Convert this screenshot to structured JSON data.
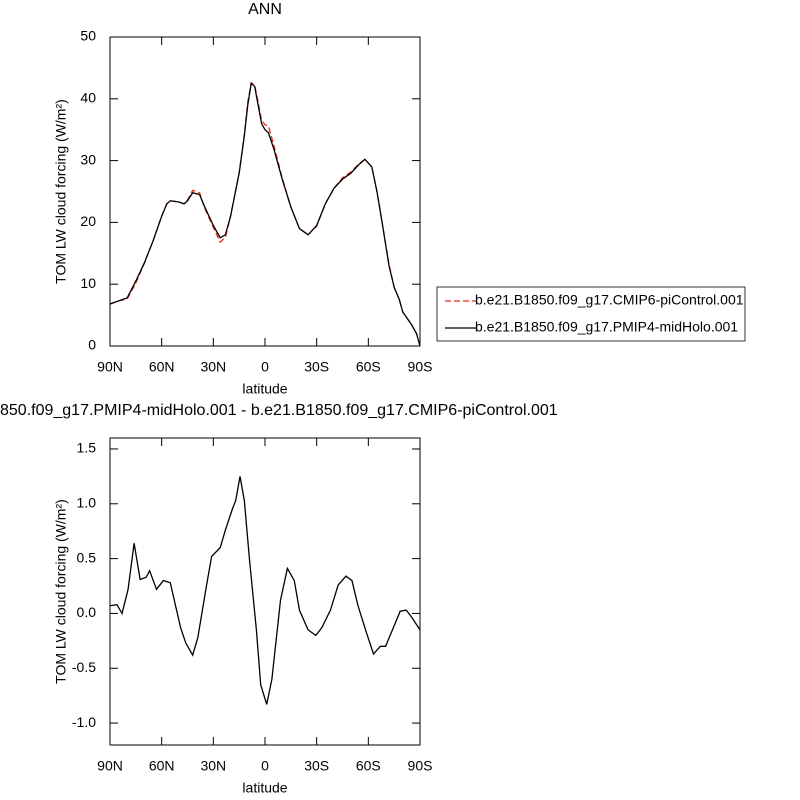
{
  "chart_data": [
    {
      "type": "line",
      "title": "ANN",
      "x_label": "latitude",
      "y_label": "TOM LW cloud forcing (W/m²)",
      "xlim": [
        90,
        -90
      ],
      "ylim": [
        0,
        50
      ],
      "xticks": [
        {
          "value": 90,
          "label": "90N"
        },
        {
          "value": 60,
          "label": "60N"
        },
        {
          "value": 30,
          "label": "30N"
        },
        0,
        {
          "value": -30,
          "label": "30S"
        },
        {
          "value": -60,
          "label": "60S"
        },
        {
          "value": -90,
          "label": "90S"
        }
      ],
      "yticks": [
        0,
        10,
        20,
        30,
        40,
        50
      ],
      "legend": "outside-right",
      "x": [
        90,
        85,
        80,
        75,
        70,
        65,
        60,
        57,
        55,
        50,
        47,
        45,
        42,
        38,
        35,
        30,
        26,
        23,
        20,
        15,
        12,
        10,
        8,
        6,
        4,
        2,
        0,
        -2,
        -5,
        -10,
        -15,
        -20,
        -25,
        -30,
        -35,
        -40,
        -45,
        -50,
        -55,
        -58,
        -62,
        -65,
        -68,
        -72,
        -75,
        -78,
        -80,
        -85,
        -88,
        -90
      ],
      "series": [
        {
          "name": "b.e21.B1850.f09_g17.CMIP6-piControl.001",
          "color": "#e8281e",
          "dash": true,
          "values": [
            6.8,
            7.3,
            7.6,
            10.2,
            13.4,
            17,
            21,
            23,
            23.5,
            23.3,
            23,
            23.6,
            25.2,
            24.8,
            22.3,
            19.2,
            16.8,
            17.6,
            21,
            28,
            34.2,
            39.5,
            42.6,
            42.2,
            39.5,
            36.5,
            35.8,
            35.6,
            32.6,
            27.2,
            22.5,
            19,
            18,
            19.4,
            23,
            25.5,
            27.2,
            28.2,
            29.6,
            30.2,
            29,
            25,
            20,
            13.2,
            9.5,
            7.5,
            5.5,
            3.5,
            2,
            0
          ]
        },
        {
          "name": "b.e21.B1850.f09_g17.PMIP4-midHolo.001",
          "color": "#000000",
          "dash": false,
          "values": [
            6.8,
            7.3,
            7.8,
            10.5,
            13.5,
            17,
            21,
            23,
            23.5,
            23.3,
            23,
            23.5,
            24.8,
            24.5,
            22.5,
            19.5,
            17.5,
            18,
            21,
            28,
            34,
            39,
            42.5,
            42,
            39,
            36,
            35,
            34.5,
            32,
            27,
            22.5,
            19,
            18,
            19.5,
            23,
            25.5,
            27,
            28,
            29.5,
            30.2,
            29,
            25,
            20,
            13,
            9.5,
            7.5,
            5.5,
            3.5,
            2,
            0
          ]
        }
      ]
    },
    {
      "type": "line",
      "title": "850.f09_g17.PMIP4-midHolo.001 - b.e21.B1850.f09_g17.CMIP6-piControl.001",
      "x_label": "latitude",
      "y_label": "TOM LW cloud forcing (W/m²)",
      "xlim": [
        90,
        -90
      ],
      "ylim": [
        -1.2,
        1.6
      ],
      "xticks": [
        {
          "value": 90,
          "label": "90N"
        },
        {
          "value": 60,
          "label": "60N"
        },
        {
          "value": 30,
          "label": "30N"
        },
        0,
        {
          "value": -30,
          "label": "30S"
        },
        {
          "value": -60,
          "label": "60S"
        },
        {
          "value": -90,
          "label": "90S"
        }
      ],
      "yticks": [
        {
          "value": -1,
          "label": "-1.0"
        },
        -0.5,
        {
          "value": 0,
          "label": "0.0"
        },
        0.5,
        {
          "value": 1,
          "label": "1.0"
        },
        1.5
      ],
      "x": [
        90,
        86,
        83,
        79.5,
        76,
        72.5,
        69,
        67,
        63,
        59,
        55,
        49,
        46,
        42,
        39,
        34,
        31,
        26,
        23,
        19,
        17,
        14.5,
        12,
        9,
        5,
        2.5,
        -1,
        -4,
        -9,
        -13,
        -17,
        -20,
        -25,
        -29.5,
        -33,
        -38,
        -42.5,
        -47,
        -50.5,
        -54,
        -59,
        -63,
        -67,
        -70,
        -74,
        -78.5,
        -82,
        -85,
        -90
      ],
      "color": "#000000",
      "values": [
        0.07,
        0.08,
        0,
        0.22,
        0.64,
        0.31,
        0.33,
        0.39,
        0.22,
        0.3,
        0.28,
        -0.13,
        -0.27,
        -0.38,
        -0.22,
        0.25,
        0.52,
        0.6,
        0.76,
        0.95,
        1.03,
        1.25,
        1.03,
        0.49,
        -0.15,
        -0.65,
        -0.83,
        -0.6,
        0.12,
        0.41,
        0.3,
        0.03,
        -0.15,
        -0.2,
        -0.13,
        0.03,
        0.26,
        0.34,
        0.3,
        0.07,
        -0.18,
        -0.37,
        -0.3,
        -0.3,
        -0.15,
        0.02,
        0.03,
        -0.03,
        -0.15
      ]
    }
  ]
}
